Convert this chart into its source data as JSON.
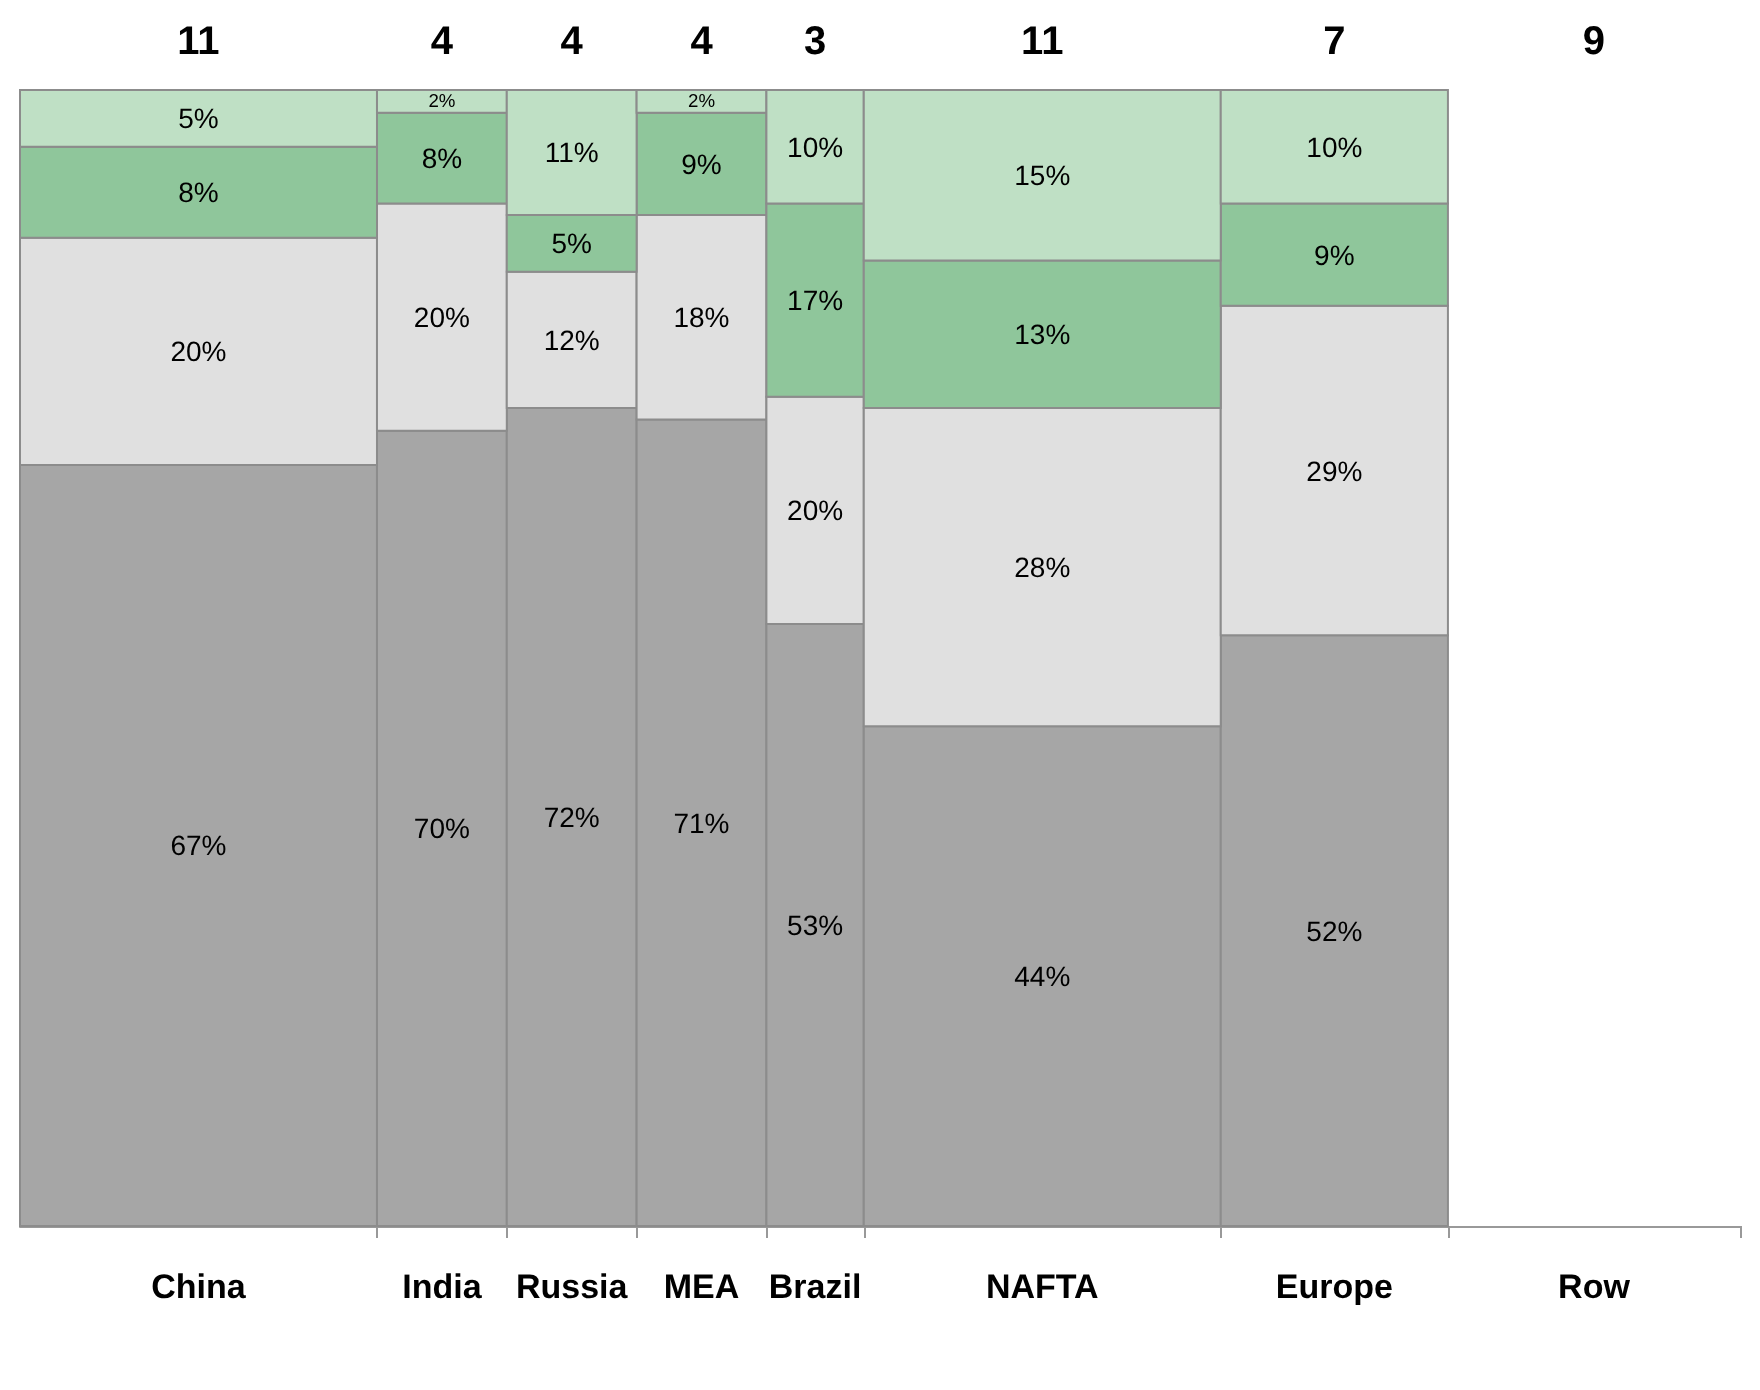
{
  "chart_data": {
    "type": "bar",
    "stacked": true,
    "categories": [
      "China",
      "India",
      "Russia",
      "MEA",
      "Brazil",
      "NAFTA",
      "Europe",
      "Row"
    ],
    "series": [
      {
        "color": "#a6a6a6",
        "values": [
          67,
          70,
          72,
          71,
          53,
          44,
          52,
          null
        ],
        "value_labels": [
          "67%",
          "70%",
          "72%",
          "71%",
          "53%",
          "44%",
          "52%",
          null
        ]
      },
      {
        "color": "#e0e0e0",
        "values": [
          20,
          20,
          12,
          18,
          20,
          28,
          29,
          null
        ],
        "value_labels": [
          "20%",
          "20%",
          "12%",
          "18%",
          "20%",
          "28%",
          "29%",
          null
        ]
      },
      {
        "color": "#8fc69b",
        "values": [
          8,
          8,
          5,
          9,
          17,
          13,
          9,
          null
        ],
        "value_labels": [
          "8%",
          "8%",
          "5%",
          "9%",
          "17%",
          "13%",
          "9%",
          null
        ]
      },
      {
        "color": "#bfe0c5",
        "values": [
          5,
          2,
          11,
          2,
          10,
          15,
          10,
          null
        ],
        "value_labels": [
          "5%",
          "2%",
          "11%",
          "2%",
          "10%",
          "15%",
          "10%",
          null
        ]
      }
    ],
    "annotations": [
      "11",
      "4",
      "4",
      "4",
      "3",
      "11",
      "7",
      "9"
    ]
  }
}
